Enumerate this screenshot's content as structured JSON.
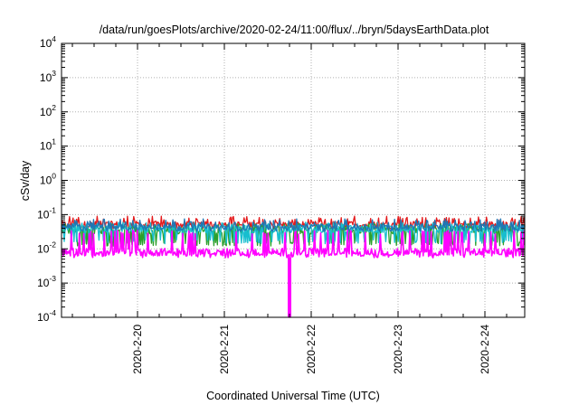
{
  "chart_data": {
    "type": "line",
    "title": "/data/run/goesPlots/archive/2020-02-24/11:00/flux/../bryn/5daysEarthData.plot",
    "xlabel": "Coordinated Universal Time (UTC)",
    "ylabel": "cSv/day",
    "yscale": "log",
    "ylim": [
      0.0001,
      10000
    ],
    "yticks": [
      {
        "base": "10",
        "exp": "-4"
      },
      {
        "base": "10",
        "exp": "-3"
      },
      {
        "base": "10",
        "exp": "-2"
      },
      {
        "base": "10",
        "exp": "-1"
      },
      {
        "base": "10",
        "exp": "0"
      },
      {
        "base": "10",
        "exp": "1"
      },
      {
        "base": "10",
        "exp": "2"
      },
      {
        "base": "10",
        "exp": "3"
      },
      {
        "base": "10",
        "exp": "4"
      }
    ],
    "xlim": [
      "2020-02-19 03:00",
      "2020-02-24 11:00"
    ],
    "xticks": [
      {
        "label": "2020-2-20",
        "date": "2020-02-20 00:00"
      },
      {
        "label": "2020-2-21",
        "date": "2020-02-21 00:00"
      },
      {
        "label": "2020-2-22",
        "date": "2020-02-22 00:00"
      },
      {
        "label": "2020-2-23",
        "date": "2020-02-23 00:00"
      },
      {
        "label": "2020-2-24",
        "date": "2020-02-24 00:00"
      }
    ],
    "grid": true,
    "series": [
      {
        "color": "#e41a1c",
        "base": 0.05,
        "low": 0.03,
        "high": 0.09,
        "dips": false
      },
      {
        "color": "#2ca02c",
        "base": 0.035,
        "low": 0.012,
        "high": 0.055,
        "dips": true
      },
      {
        "color": "#17becf",
        "base": 0.038,
        "low": 0.014,
        "high": 0.06,
        "dips": true
      },
      {
        "color": "#1f77b4",
        "base": 0.042,
        "low": 0.025,
        "high": 0.075,
        "dips": false
      },
      {
        "color": "#ff00ff",
        "base": 0.008,
        "low": 0.0055,
        "high": 0.035,
        "dips": true
      }
    ],
    "events": [
      {
        "series": 4,
        "date": "2020-02-21 18:00",
        "value": 0.0001
      }
    ]
  }
}
